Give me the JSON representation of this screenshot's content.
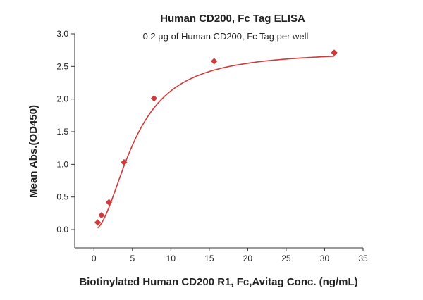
{
  "chart_data": {
    "type": "scatter",
    "title": "Human CD200, Fc Tag ELISA",
    "subtitle": "0.2 µg of Human CD200, Fc Tag per well",
    "xlabel": "Biotinylated Human CD200 R1, Fc,Avitag Conc. (ng/mL)",
    "ylabel": "Mean Abs.(OD450)",
    "xlim": [
      -2.5,
      35
    ],
    "ylim": [
      -0.28,
      3.0
    ],
    "x_ticks": [
      0,
      5,
      10,
      15,
      20,
      25,
      30,
      35
    ],
    "y_ticks": [
      0.0,
      0.5,
      1.0,
      1.5,
      2.0,
      2.5,
      3.0
    ],
    "x_tick_labels": [
      "0",
      "5",
      "10",
      "15",
      "20",
      "25",
      "30",
      "35"
    ],
    "y_tick_labels": [
      "0.0",
      "0.5",
      "1.0",
      "1.5",
      "2.0",
      "2.5",
      "3.0"
    ],
    "grid": false,
    "legend": "none",
    "series": [
      {
        "color": "#d03a3a",
        "marker": "diamond",
        "x": [
          0.49,
          0.98,
          1.95,
          3.91,
          7.81,
          15.63,
          31.25
        ],
        "y": [
          0.11,
          0.22,
          0.42,
          1.03,
          2.01,
          2.58,
          2.71
        ]
      }
    ],
    "fit_curve": {
      "color": "#d03a3a",
      "model": "4PL",
      "params": {
        "bottom": 0.0,
        "top": 2.74,
        "ec50": 5.3,
        "hill": 1.95
      }
    }
  }
}
